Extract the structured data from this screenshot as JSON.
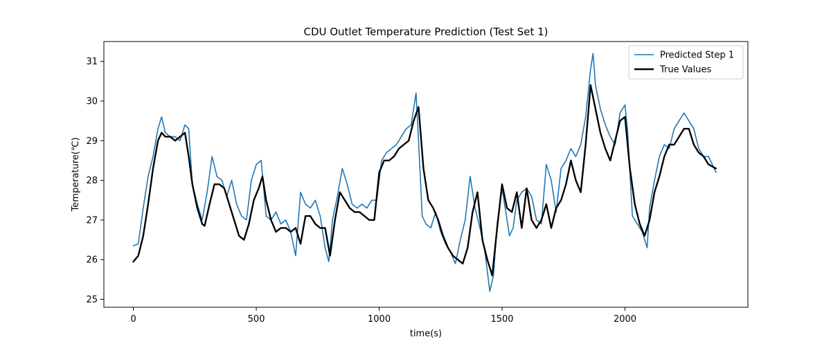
{
  "chart_data": {
    "type": "line",
    "title": "CDU Outlet Temperature Prediction (Test Set 1)",
    "xlabel": "time(s)",
    "ylabel": "Temperature(℃)",
    "xlim": [
      -120,
      2500
    ],
    "ylim": [
      24.8,
      31.5
    ],
    "xticks": [
      0,
      500,
      1000,
      1500,
      2000
    ],
    "yticks": [
      25,
      26,
      27,
      28,
      29,
      30,
      31
    ],
    "grid": false,
    "legend_position": "top-right",
    "series": [
      {
        "name": "Predicted Step 1",
        "color": "#1f77b4",
        "linewidth": 1.6,
        "x": [
          0,
          20,
          40,
          60,
          80,
          100,
          115,
          130,
          150,
          170,
          190,
          210,
          225,
          240,
          260,
          280,
          300,
          320,
          340,
          360,
          380,
          400,
          420,
          440,
          460,
          480,
          500,
          520,
          540,
          560,
          580,
          600,
          620,
          640,
          660,
          680,
          700,
          720,
          740,
          760,
          780,
          795,
          810,
          830,
          850,
          870,
          890,
          910,
          930,
          950,
          970,
          990,
          1010,
          1030,
          1050,
          1070,
          1090,
          1110,
          1130,
          1150,
          1160,
          1175,
          1190,
          1210,
          1230,
          1250,
          1270,
          1290,
          1310,
          1330,
          1350,
          1370,
          1390,
          1410,
          1430,
          1450,
          1465,
          1480,
          1500,
          1515,
          1530,
          1545,
          1560,
          1580,
          1600,
          1620,
          1640,
          1660,
          1680,
          1700,
          1720,
          1740,
          1760,
          1780,
          1800,
          1820,
          1840,
          1860,
          1870,
          1880,
          1900,
          1920,
          1940,
          1960,
          1980,
          2000,
          2010,
          2030,
          2050,
          2070,
          2090,
          2100,
          2120,
          2140,
          2160,
          2180,
          2200,
          2220,
          2240,
          2260,
          2280,
          2300,
          2320,
          2340,
          2370
        ],
        "y": [
          26.35,
          26.4,
          27.3,
          28.1,
          28.6,
          29.3,
          29.6,
          29.2,
          29.1,
          29.1,
          29.0,
          29.4,
          29.3,
          27.9,
          27.4,
          27.0,
          27.7,
          28.6,
          28.1,
          28.0,
          27.6,
          28.0,
          27.4,
          27.1,
          27.0,
          28.0,
          28.4,
          28.5,
          27.1,
          27.0,
          27.2,
          26.9,
          27.0,
          26.7,
          26.1,
          27.7,
          27.4,
          27.3,
          27.5,
          27.1,
          26.3,
          25.95,
          27.0,
          27.6,
          28.3,
          27.9,
          27.4,
          27.3,
          27.4,
          27.3,
          27.5,
          27.5,
          28.5,
          28.7,
          28.8,
          28.9,
          29.1,
          29.3,
          29.4,
          30.2,
          29.0,
          27.1,
          26.9,
          26.8,
          27.2,
          26.7,
          26.4,
          26.2,
          25.9,
          26.5,
          27.0,
          28.1,
          27.3,
          26.8,
          26.2,
          25.2,
          25.6,
          26.9,
          27.8,
          27.2,
          26.6,
          26.8,
          27.5,
          27.7,
          27.8,
          27.6,
          27.0,
          26.9,
          28.4,
          28.0,
          27.2,
          28.3,
          28.5,
          28.8,
          28.6,
          28.9,
          29.6,
          30.8,
          31.2,
          30.4,
          29.8,
          29.4,
          29.1,
          28.9,
          29.7,
          29.9,
          29.3,
          27.1,
          26.9,
          26.7,
          26.3,
          27.3,
          28.0,
          28.6,
          28.9,
          28.8,
          29.3,
          29.5,
          29.7,
          29.5,
          29.3,
          28.8,
          28.6,
          28.6,
          28.2
        ]
      },
      {
        "name": "True Values",
        "color": "#000000",
        "linewidth": 2.4,
        "x": [
          0,
          20,
          40,
          60,
          80,
          100,
          115,
          130,
          150,
          170,
          190,
          210,
          225,
          240,
          260,
          280,
          290,
          310,
          330,
          350,
          370,
          390,
          410,
          430,
          450,
          470,
          490,
          510,
          525,
          540,
          560,
          580,
          600,
          620,
          640,
          660,
          680,
          700,
          720,
          740,
          760,
          780,
          800,
          820,
          840,
          860,
          880,
          900,
          920,
          940,
          960,
          980,
          1000,
          1020,
          1040,
          1060,
          1080,
          1100,
          1120,
          1140,
          1160,
          1180,
          1200,
          1220,
          1240,
          1260,
          1280,
          1300,
          1320,
          1340,
          1360,
          1380,
          1400,
          1420,
          1440,
          1460,
          1480,
          1500,
          1520,
          1540,
          1560,
          1580,
          1600,
          1620,
          1640,
          1660,
          1680,
          1700,
          1720,
          1740,
          1760,
          1780,
          1800,
          1820,
          1840,
          1860,
          1880,
          1900,
          1920,
          1940,
          1960,
          1980,
          2000,
          2020,
          2040,
          2060,
          2080,
          2100,
          2120,
          2140,
          2160,
          2180,
          2200,
          2220,
          2240,
          2260,
          2280,
          2300,
          2320,
          2340,
          2370
        ],
        "y": [
          25.95,
          26.1,
          26.6,
          27.4,
          28.3,
          29.0,
          29.2,
          29.1,
          29.1,
          29.0,
          29.1,
          29.2,
          28.6,
          27.9,
          27.3,
          26.9,
          26.85,
          27.4,
          27.9,
          27.9,
          27.8,
          27.4,
          27.0,
          26.6,
          26.5,
          26.9,
          27.5,
          27.8,
          28.1,
          27.5,
          27.0,
          26.7,
          26.8,
          26.8,
          26.7,
          26.8,
          26.4,
          27.1,
          27.1,
          26.9,
          26.8,
          26.8,
          26.1,
          27.0,
          27.7,
          27.5,
          27.3,
          27.2,
          27.2,
          27.1,
          27.0,
          27.0,
          28.2,
          28.5,
          28.5,
          28.6,
          28.8,
          28.9,
          29.0,
          29.5,
          29.85,
          28.3,
          27.5,
          27.3,
          27.0,
          26.6,
          26.3,
          26.1,
          26.0,
          25.9,
          26.3,
          27.2,
          27.7,
          26.5,
          26.0,
          25.6,
          26.8,
          27.9,
          27.3,
          27.2,
          27.7,
          26.8,
          27.8,
          27.0,
          26.8,
          27.0,
          27.4,
          26.8,
          27.3,
          27.5,
          27.9,
          28.5,
          28.0,
          27.7,
          28.9,
          30.4,
          29.8,
          29.2,
          28.8,
          28.5,
          29.0,
          29.5,
          29.6,
          28.3,
          27.4,
          26.9,
          26.6,
          27.0,
          27.7,
          28.1,
          28.6,
          28.9,
          28.9,
          29.1,
          29.3,
          29.3,
          28.9,
          28.7,
          28.6,
          28.4,
          28.3
        ]
      }
    ]
  }
}
